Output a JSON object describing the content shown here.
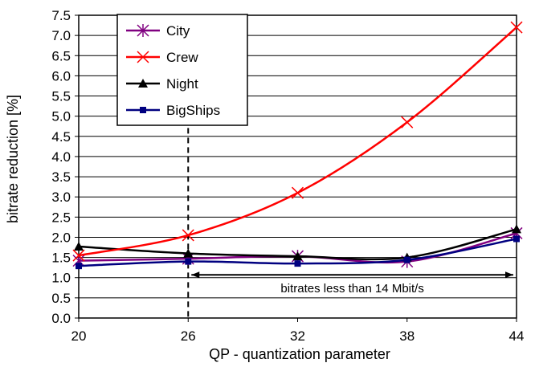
{
  "chart_data": {
    "type": "line",
    "x": [
      20,
      26,
      32,
      38,
      44
    ],
    "xlim": [
      20,
      44
    ],
    "ylim": [
      0,
      7.5
    ],
    "xlabel": "QP - quantization parameter",
    "ylabel": "bitrate reduction [%]",
    "x_ticks": [
      "20",
      "26",
      "32",
      "38",
      "44"
    ],
    "y_ticks": [
      "0.0",
      "0.5",
      "1.0",
      "1.5",
      "2.0",
      "2.5",
      "3.0",
      "3.5",
      "4.0",
      "4.5",
      "5.0",
      "5.5",
      "6.0",
      "6.5",
      "7.0",
      "7.5"
    ],
    "grid": "horizontal",
    "legend_position": "top-left",
    "series": [
      {
        "name": "City",
        "values": [
          1.42,
          1.47,
          1.53,
          1.4,
          2.1
        ],
        "color": "#800080",
        "marker": "asterisk"
      },
      {
        "name": "Crew",
        "values": [
          1.55,
          2.05,
          3.1,
          4.85,
          7.2
        ],
        "color": "#ff0000",
        "marker": "x"
      },
      {
        "name": "Night",
        "values": [
          1.77,
          1.6,
          1.53,
          1.5,
          2.2
        ],
        "color": "#000000",
        "marker": "triangle"
      },
      {
        "name": "BigShips",
        "values": [
          1.29,
          1.4,
          1.35,
          1.44,
          1.96
        ],
        "color": "#000080",
        "marker": "square"
      }
    ],
    "annotation": {
      "text": "bitrates less than 14 Mbit/s",
      "from_x": 26,
      "to_x": 44,
      "y": 1.07,
      "dashed_line_x": 26,
      "dashed_line_top": 5.9
    }
  }
}
